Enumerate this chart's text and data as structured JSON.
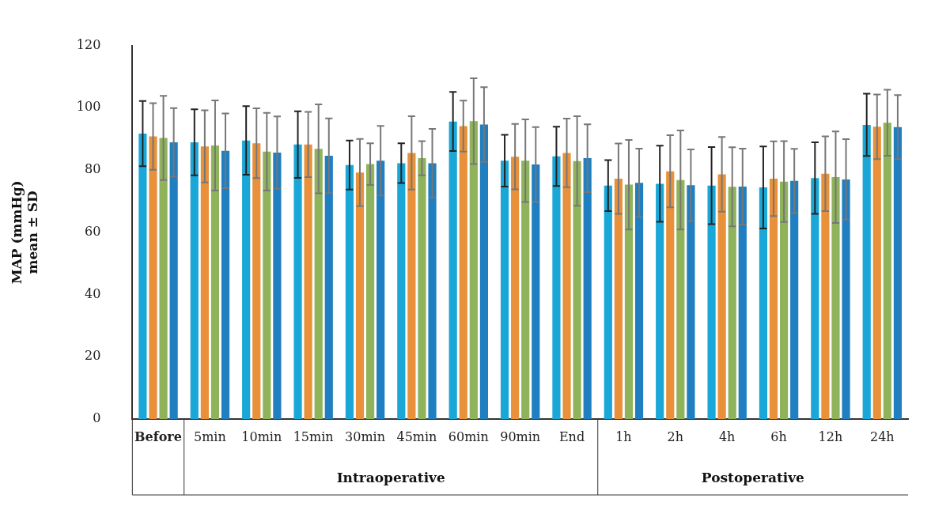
{
  "chart_data": {
    "type": "bar",
    "ylabel": "MAP (mmHg)\nmean ± SD",
    "categories": [
      "Before",
      "5min",
      "10min",
      "15min",
      "30min",
      "45min",
      "60min",
      "90min",
      "End",
      "1h",
      "2h",
      "4h",
      "6h",
      "12h",
      "24h"
    ],
    "series": [
      {
        "color": "#1aa7d8",
        "values": [
          91.7,
          88.9,
          89.5,
          88.2,
          81.6,
          82.2,
          95.6,
          83.0,
          84.4,
          75.0,
          75.6,
          75.0,
          74.4,
          77.4,
          94.5
        ],
        "errors": [
          10.5,
          10.6,
          11.0,
          10.7,
          7.9,
          6.4,
          9.5,
          8.3,
          9.5,
          8.2,
          12.2,
          12.4,
          13.2,
          11.5,
          10.0
        ]
      },
      {
        "color": "#e8913a",
        "values": [
          90.8,
          87.6,
          88.6,
          88.2,
          79.2,
          85.5,
          94.1,
          84.3,
          85.5,
          77.2,
          79.6,
          78.6,
          77.2,
          78.8,
          93.9
        ],
        "errors": [
          10.7,
          11.6,
          11.2,
          10.5,
          10.8,
          11.8,
          8.2,
          10.5,
          11.0,
          11.3,
          11.6,
          12.0,
          12.0,
          12.0,
          10.4
        ]
      },
      {
        "color": "#8fb35a",
        "values": [
          90.3,
          87.9,
          85.9,
          86.8,
          81.9,
          83.8,
          95.7,
          83.0,
          82.9,
          75.3,
          76.8,
          74.6,
          76.3,
          77.7,
          95.2
        ],
        "errors": [
          13.5,
          14.5,
          12.5,
          14.3,
          6.7,
          5.5,
          13.8,
          13.3,
          14.4,
          14.4,
          15.9,
          12.7,
          13.0,
          14.7,
          10.6
        ]
      },
      {
        "color": "#1f7fc0",
        "values": [
          88.9,
          86.2,
          85.6,
          84.6,
          83.0,
          82.2,
          94.6,
          81.8,
          83.8,
          75.9,
          75.1,
          74.7,
          76.5,
          77.0,
          93.8
        ],
        "errors": [
          11.0,
          12.0,
          11.6,
          12.0,
          11.2,
          11.0,
          12.0,
          12.0,
          10.9,
          11.0,
          11.5,
          12.2,
          10.3,
          12.9,
          10.3
        ]
      }
    ],
    "annotations": [
      "Intraoperative",
      "Postoperative"
    ],
    "ylim": [
      0,
      120
    ],
    "yticks": [
      0,
      20,
      40,
      60,
      80,
      100,
      120
    ],
    "grid": false,
    "legend": false
  }
}
